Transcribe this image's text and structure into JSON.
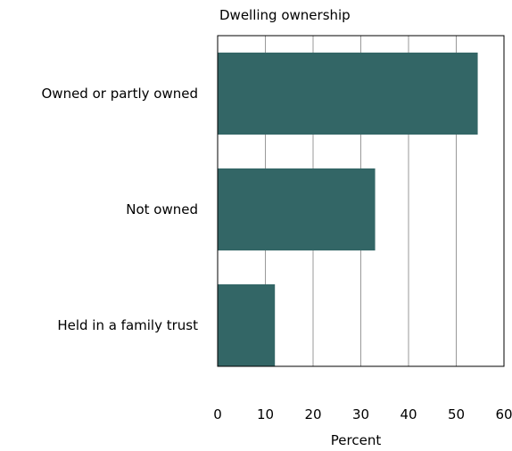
{
  "colors": {
    "bar": "#336666",
    "grid": "#999999",
    "axis": "#000000",
    "background": "#ffffff"
  },
  "chart_data": {
    "type": "bar",
    "orientation": "horizontal",
    "title": "Dwelling ownership",
    "xlabel": "Percent",
    "ylabel": "",
    "categories": [
      "Owned or partly owned",
      "Not owned",
      "Held in a family trust"
    ],
    "values": [
      54.5,
      33,
      12
    ],
    "xlim": [
      0,
      60
    ],
    "xticks": [
      "0",
      "10",
      "20",
      "30",
      "40",
      "50",
      "60"
    ],
    "grid": true,
    "legend": "none"
  }
}
